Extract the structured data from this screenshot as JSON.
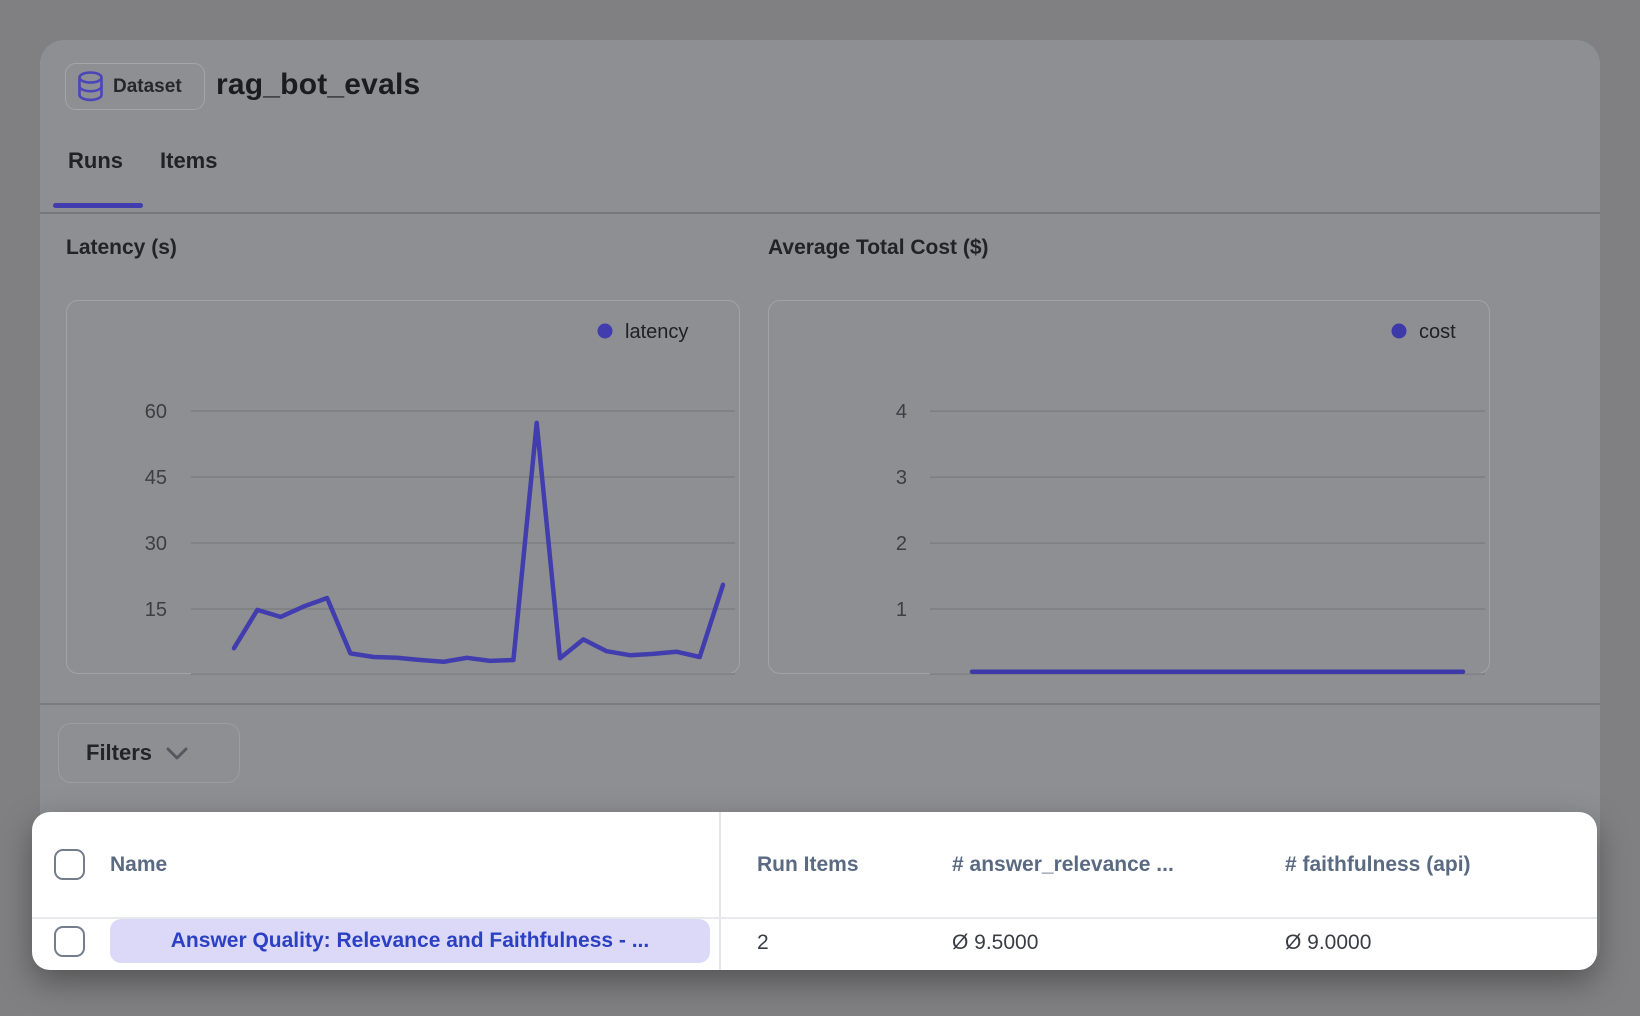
{
  "header": {
    "badge_label": "Dataset",
    "title": "rag_bot_evals"
  },
  "tabs": [
    {
      "label": "Runs",
      "active": true
    },
    {
      "label": "Items",
      "active": false
    }
  ],
  "filters": {
    "label": "Filters"
  },
  "chart_data": [
    {
      "type": "line",
      "title": "Latency (s)",
      "series": [
        {
          "name": "latency",
          "values": [
            6.1,
            14.8,
            13.2,
            15.6,
            17.5,
            4.9,
            4.1,
            3.9,
            3.4,
            3.0,
            3.9,
            3.2,
            3.4,
            57.3,
            3.8,
            8.1,
            5.4,
            4.5,
            4.8,
            5.3,
            4.1,
            20.5
          ]
        }
      ],
      "yticks": [
        15,
        30,
        45,
        60
      ],
      "ylim": [
        0,
        85
      ],
      "grid": true,
      "legend_position": "top-right",
      "color": "#423dae"
    },
    {
      "type": "line",
      "title": "Average Total Cost ($)",
      "series": [
        {
          "name": "cost",
          "values": [
            0.05,
            0.05,
            0.05,
            0.05,
            0.05,
            0.05,
            0.05,
            0.05,
            0.05,
            0.05,
            0.05,
            0.05,
            0.05,
            0.05,
            0.05,
            0.05,
            0.05,
            0.05,
            0.05,
            0.05,
            0.05,
            0.05
          ]
        }
      ],
      "yticks": [
        1,
        2,
        3,
        4
      ],
      "ylim": [
        0,
        5.67
      ],
      "grid": true,
      "legend_position": "top-right",
      "color": "#3e39a9"
    }
  ],
  "table": {
    "columns": [
      {
        "label": "Name"
      },
      {
        "label": "Run Items"
      },
      {
        "label": "# answer_relevance ..."
      },
      {
        "label": "# faithfulness (api)"
      }
    ],
    "rows": [
      {
        "name": "Answer Quality: Relevance and Faithfulness - ...",
        "run_items": "2",
        "answer_relevance": "Ø 9.5000",
        "faithfulness": "Ø 9.0000"
      }
    ]
  },
  "colors": {
    "accent_indigo": "#413dae",
    "pill_bg": "#dcd9f8",
    "pill_text": "#2b40c2",
    "grid_line": "#7c7e82",
    "tick_text": "#3b3e44",
    "legend_text": "#202125",
    "table_header_text": "#5a6a82",
    "spotlight_bg": "#ffffff"
  }
}
